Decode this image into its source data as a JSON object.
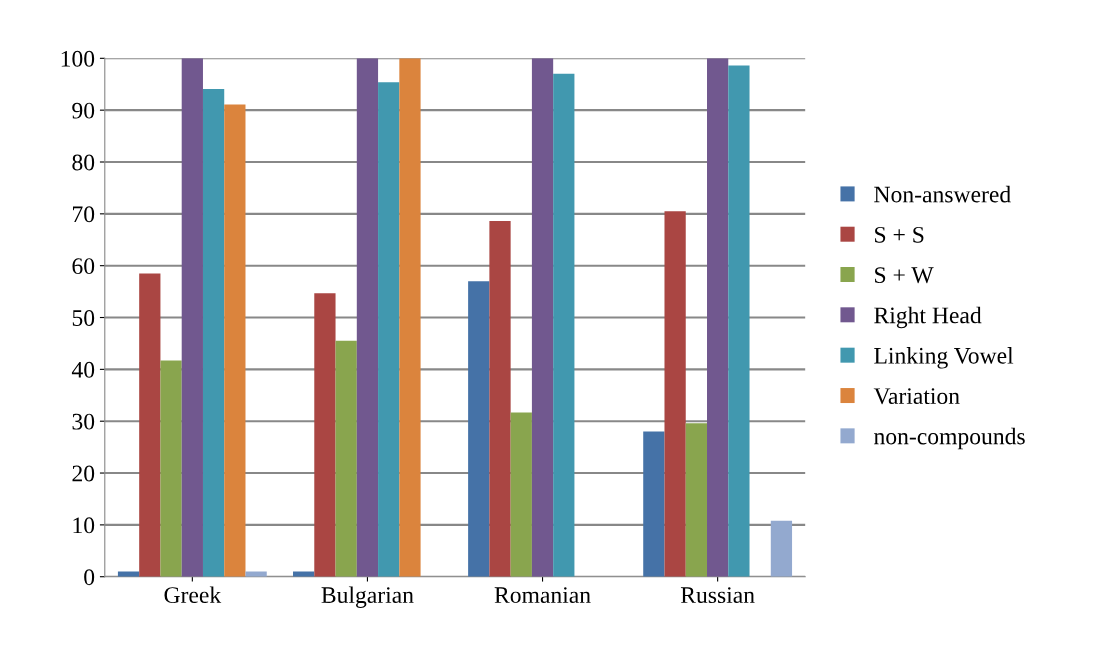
{
  "chart_data": {
    "type": "bar",
    "categories": [
      "Greek",
      "Bulgarian",
      "Romanian",
      "Russian"
    ],
    "series": [
      {
        "name": "Non-answered",
        "color": "#4572a7",
        "values": [
          1,
          1,
          57,
          28
        ]
      },
      {
        "name": "S + S",
        "color": "#aa4643",
        "values": [
          58.5,
          54.7,
          68.6,
          70.5
        ]
      },
      {
        "name": "S + W",
        "color": "#89a54e",
        "values": [
          41.7,
          45.5,
          31.7,
          29.6
        ]
      },
      {
        "name": "Right Head",
        "color": "#71588f",
        "values": [
          100,
          100,
          100,
          100
        ]
      },
      {
        "name": "Linking Vowel",
        "color": "#4198af",
        "values": [
          94.1,
          95.4,
          97,
          98.6
        ]
      },
      {
        "name": "Variation",
        "color": "#db843d",
        "values": [
          91.1,
          100,
          0,
          0
        ]
      },
      {
        "name": "non-compounds",
        "color": "#93a9cf",
        "values": [
          1,
          0,
          0,
          10.8
        ]
      }
    ],
    "ylim": [
      0,
      100
    ],
    "yticks": [
      0,
      10,
      20,
      30,
      40,
      50,
      60,
      70,
      80,
      90,
      100
    ],
    "grid": "y",
    "legend": "right"
  }
}
